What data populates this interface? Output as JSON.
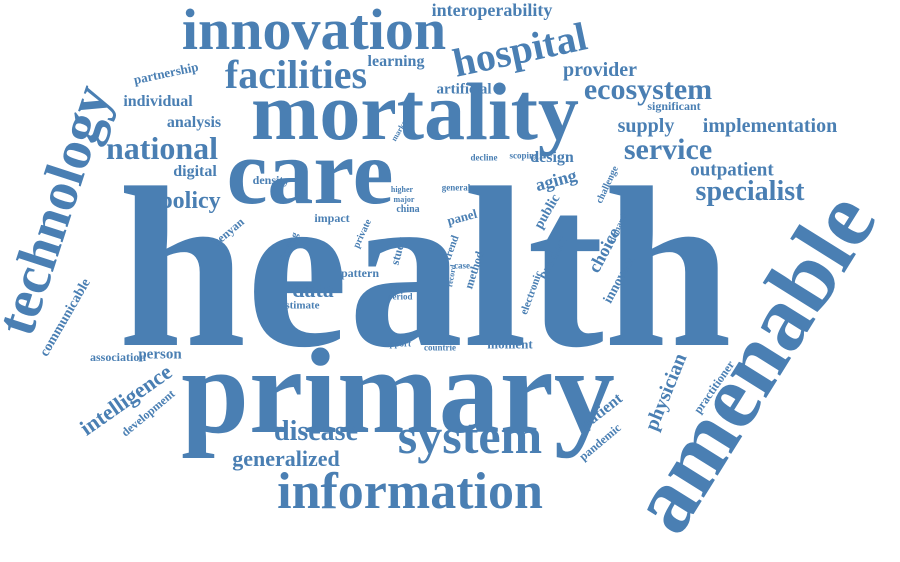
{
  "cloud": {
    "color": "#4a7fb3",
    "words": [
      "health",
      "primary",
      "care",
      "mortality",
      "amenable",
      "innovation",
      "information",
      "technology",
      "system",
      "facilities",
      "hospital",
      "national",
      "service",
      "ecosystem",
      "specialist",
      "disease",
      "interoperability",
      "generalized",
      "policy",
      "provider",
      "supply",
      "implementation",
      "outpatient",
      "physician",
      "intelligence",
      "data",
      "learning",
      "analysis",
      "individual",
      "partnership",
      "artificial",
      "digital",
      "density",
      "person",
      "communicable",
      "association",
      "development",
      "practitioner",
      "patient",
      "pandemic",
      "significant",
      "moment",
      "design",
      "aging",
      "public",
      "product",
      "choice",
      "innovate",
      "electronic",
      "method",
      "pattern",
      "estimate",
      "period",
      "initial",
      "impact",
      "panel",
      "study",
      "trend",
      "case",
      "record",
      "finding",
      "kenyan",
      "private",
      "china",
      "higher",
      "major",
      "general",
      "decline",
      "scoping",
      "market",
      "challenge",
      "demand",
      "support",
      "countrie"
    ]
  }
}
